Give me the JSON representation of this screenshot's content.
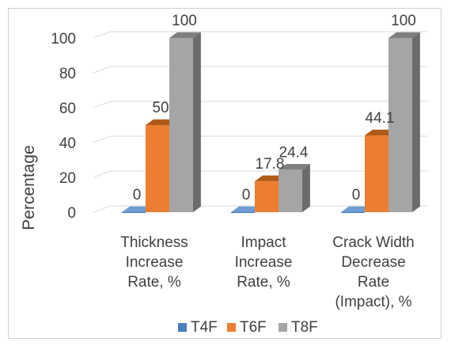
{
  "chart_data": {
    "type": "bar",
    "style": "3d-clustered-column",
    "categories": [
      [
        "Thickness",
        "Increase",
        "Rate, %"
      ],
      [
        "Impact",
        "Increase",
        "Rate, %"
      ],
      [
        "Crack Width",
        "Decrease",
        "Rate",
        "(Impact), %"
      ]
    ],
    "series": [
      {
        "name": "T4F",
        "color": "#4a7dbd",
        "top": "#6f9bd3",
        "side": "#33608f",
        "values": [
          0,
          0,
          0
        ],
        "labels": [
          "0",
          "0",
          "0"
        ]
      },
      {
        "name": "T6F",
        "color": "#ed7d31",
        "top": "#b05a18",
        "side": "#c4621c",
        "values": [
          50,
          17.8,
          44.1
        ],
        "labels": [
          "50",
          "17.8",
          "44.1"
        ]
      },
      {
        "name": "T8F",
        "color": "#a5a5a5",
        "top": "#7f7f7f",
        "side": "#6b6b6b",
        "values": [
          100,
          24.4,
          100
        ],
        "labels": [
          "100",
          "24.4",
          "100"
        ]
      }
    ],
    "ylabel": "Percentage",
    "ylim": [
      0,
      100
    ],
    "yticks": [
      0,
      20,
      40,
      60,
      80,
      100
    ],
    "legend_position": "bottom",
    "grid": true,
    "gridColor": "#d9d9d9"
  }
}
